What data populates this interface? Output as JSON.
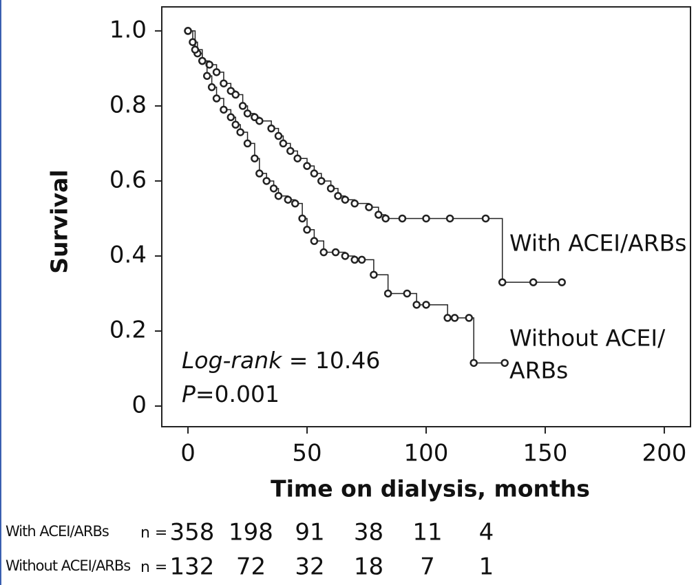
{
  "chart_data": {
    "type": "km",
    "y_label": "Survival",
    "x_label": "Time on dialysis, months",
    "xlim": [
      -11,
      211
    ],
    "xticks": [
      0,
      50,
      100,
      150,
      200
    ],
    "ylim": [
      -0.055,
      1.064
    ],
    "yticks": [
      0,
      0.2,
      0.4,
      0.6,
      0.8,
      {
        "value": 1,
        "label": "1.0"
      }
    ],
    "series": [
      {
        "name": "With ACEI/ARBs",
        "color": "#222222",
        "x": [
          0,
          2,
          4,
          6,
          9,
          12,
          15,
          18,
          20,
          23,
          25,
          28,
          30,
          35,
          38,
          40,
          43,
          46,
          50,
          53,
          56,
          60,
          63,
          66,
          70,
          76,
          80,
          83,
          90,
          100,
          110,
          125,
          132,
          145,
          157
        ],
        "values": [
          1.0,
          0.97,
          0.94,
          0.92,
          0.91,
          0.89,
          0.86,
          0.84,
          0.83,
          0.8,
          0.78,
          0.77,
          0.76,
          0.74,
          0.72,
          0.7,
          0.68,
          0.66,
          0.64,
          0.62,
          0.6,
          0.58,
          0.56,
          0.55,
          0.54,
          0.53,
          0.51,
          0.5,
          0.5,
          0.5,
          0.5,
          0.5,
          0.33,
          0.33,
          0.33
        ]
      },
      {
        "name": "Without ACEI/ARBs",
        "color": "#222222",
        "x": [
          0,
          3,
          6,
          8,
          10,
          12,
          15,
          18,
          20,
          22,
          25,
          28,
          30,
          33,
          36,
          38,
          42,
          45,
          48,
          50,
          53,
          57,
          62,
          66,
          70,
          73,
          78,
          84,
          92,
          96,
          100,
          109,
          112,
          118,
          120,
          133
        ],
        "values": [
          1.0,
          0.95,
          0.92,
          0.88,
          0.85,
          0.82,
          0.79,
          0.77,
          0.75,
          0.73,
          0.7,
          0.66,
          0.62,
          0.6,
          0.58,
          0.56,
          0.55,
          0.54,
          0.5,
          0.47,
          0.44,
          0.41,
          0.41,
          0.4,
          0.39,
          0.39,
          0.35,
          0.3,
          0.3,
          0.27,
          0.27,
          0.235,
          0.235,
          0.235,
          0.115,
          0.115
        ]
      }
    ],
    "curve_labels": [
      "With ACEI/ARBs",
      "Without ACEI/",
      "ARBs"
    ],
    "stats": [
      {
        "italic": "Log-rank",
        "text": " = 10.46"
      },
      {
        "italic": "P",
        "text": "=0.001"
      }
    ],
    "risk_table": [
      {
        "name": "With ACEI/ARBs",
        "n_label": "n =",
        "counts": [
          358,
          198,
          91,
          38,
          11,
          4
        ]
      },
      {
        "name": "Without ACEI/ARBs",
        "n_label": "n =",
        "counts": [
          132,
          72,
          32,
          18,
          7,
          1
        ]
      }
    ]
  }
}
